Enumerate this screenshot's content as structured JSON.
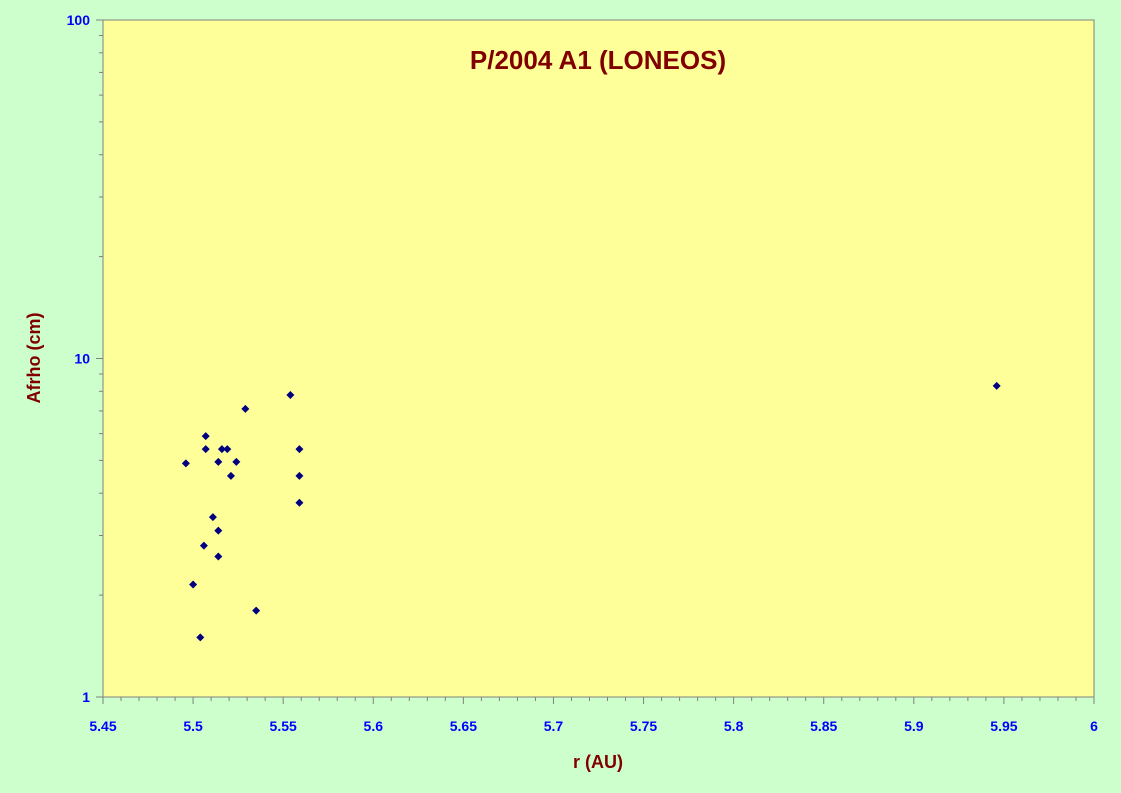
{
  "chart_data": {
    "type": "scatter",
    "title": "P/2004 A1 (LONEOS)",
    "xlabel": "r (AU)",
    "ylabel": "Afrho (cm)",
    "xlim": [
      5.45,
      6.0
    ],
    "ylim": [
      1,
      100
    ],
    "y_scale": "log",
    "x_ticks": [
      "5.45",
      "5.5",
      "5.55",
      "5.6",
      "5.65",
      "5.7",
      "5.75",
      "5.8",
      "5.85",
      "5.9",
      "5.95",
      "6"
    ],
    "y_ticks": [
      "1",
      "10",
      "100"
    ],
    "grid": false,
    "legend": "none",
    "colors": {
      "outer_background": "#ccffcc",
      "plot_background": "#ffff99",
      "marker": "#000080",
      "title": "#800000",
      "axis_title": "#800000",
      "tick_label": "#0000ff"
    },
    "series": [
      {
        "marker": "diamond",
        "points": [
          {
            "x": 5.496,
            "y": 4.9
          },
          {
            "x": 5.5,
            "y": 2.15
          },
          {
            "x": 5.504,
            "y": 1.5
          },
          {
            "x": 5.506,
            "y": 2.8
          },
          {
            "x": 5.507,
            "y": 5.4
          },
          {
            "x": 5.507,
            "y": 5.9
          },
          {
            "x": 5.511,
            "y": 3.4
          },
          {
            "x": 5.514,
            "y": 3.1
          },
          {
            "x": 5.514,
            "y": 2.6
          },
          {
            "x": 5.514,
            "y": 4.95
          },
          {
            "x": 5.516,
            "y": 5.4
          },
          {
            "x": 5.519,
            "y": 5.4
          },
          {
            "x": 5.521,
            "y": 4.5
          },
          {
            "x": 5.524,
            "y": 4.95
          },
          {
            "x": 5.529,
            "y": 7.1
          },
          {
            "x": 5.535,
            "y": 1.8
          },
          {
            "x": 5.554,
            "y": 7.8
          },
          {
            "x": 5.559,
            "y": 5.4
          },
          {
            "x": 5.559,
            "y": 4.5
          },
          {
            "x": 5.559,
            "y": 3.75
          },
          {
            "x": 5.946,
            "y": 8.3
          }
        ]
      }
    ]
  }
}
